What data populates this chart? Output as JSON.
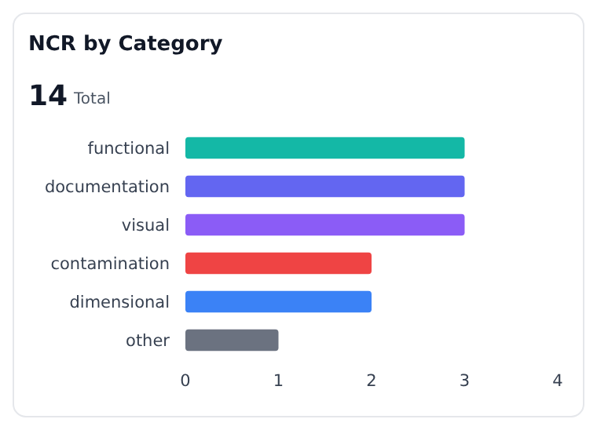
{
  "chart_data": {
    "type": "bar",
    "orientation": "horizontal",
    "title": "NCR by Category",
    "annotations": [
      "14",
      "Total"
    ],
    "categories": [
      "functional",
      "documentation",
      "visual",
      "contamination",
      "dimensional",
      "other"
    ],
    "values": [
      3,
      3,
      3,
      2,
      2,
      1
    ],
    "colors": [
      "#14b8a6",
      "#6366f1",
      "#8b5cf6",
      "#ef4444",
      "#3b82f6",
      "#6b7280"
    ],
    "xlim": [
      0,
      4
    ],
    "xticks": [
      0,
      1,
      2,
      3,
      4
    ],
    "grid": false
  }
}
